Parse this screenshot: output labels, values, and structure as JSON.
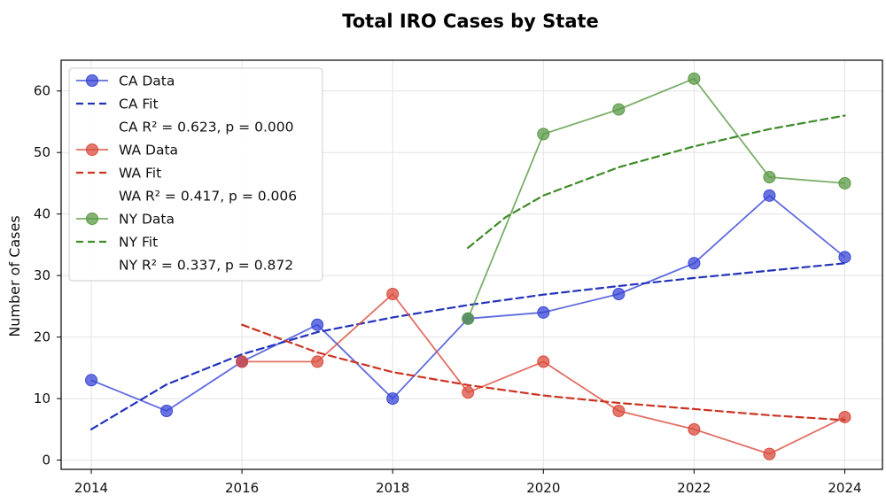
{
  "chart_data": {
    "type": "line",
    "title": "Total IRO Cases by State",
    "xlabel": "",
    "ylabel": "Number of Cases",
    "xlim": [
      2013.6,
      2024.5
    ],
    "ylim": [
      -1.5,
      65
    ],
    "x_ticks": [
      2014,
      2016,
      2018,
      2020,
      2022,
      2024
    ],
    "y_ticks": [
      0,
      10,
      20,
      30,
      40,
      50,
      60
    ],
    "grid": true,
    "legend_position": "top-left",
    "series": [
      {
        "name": "CA Data",
        "kind": "data",
        "color": "#3846d6",
        "x": [
          2014,
          2015,
          2016,
          2017,
          2018,
          2019,
          2020,
          2021,
          2022,
          2023,
          2024
        ],
        "values": [
          13,
          8,
          16,
          22,
          10,
          23,
          24,
          27,
          32,
          43,
          33
        ]
      },
      {
        "name": "CA Fit",
        "kind": "fit",
        "color": "#2233bb",
        "x": [
          2014,
          2015,
          2016,
          2017,
          2018,
          2019,
          2020,
          2021,
          2022,
          2023,
          2024
        ],
        "values": [
          5,
          12.3,
          17.2,
          20.8,
          23.2,
          25.2,
          26.9,
          28.3,
          29.6,
          30.8,
          32
        ]
      },
      {
        "name": "WA Data",
        "kind": "data",
        "color": "#d94c3d",
        "x": [
          2016,
          2017,
          2018,
          2019,
          2020,
          2021,
          2022,
          2023,
          2024
        ],
        "values": [
          16,
          16,
          27,
          11,
          16,
          8,
          5,
          1,
          7
        ]
      },
      {
        "name": "WA Fit",
        "kind": "fit",
        "color": "#cc3322",
        "x": [
          2016,
          2017,
          2018,
          2019,
          2020,
          2021,
          2022,
          2023,
          2024
        ],
        "values": [
          22,
          17.5,
          14.3,
          12.2,
          10.5,
          9.3,
          8.3,
          7.3,
          6.5
        ]
      },
      {
        "name": "NY Data",
        "kind": "data",
        "color": "#5a9a45",
        "x": [
          2019,
          2020,
          2021,
          2022,
          2023,
          2024
        ],
        "values": [
          23,
          53,
          57,
          62,
          46,
          45
        ]
      },
      {
        "name": "NY Fit",
        "kind": "fit",
        "color": "#3f8a2a",
        "x": [
          2019,
          2019.5,
          2020,
          2021,
          2022,
          2023,
          2024
        ],
        "values": [
          34.5,
          39.5,
          43,
          47.6,
          51,
          53.8,
          56
        ]
      }
    ],
    "legend": [
      {
        "label": "CA Data",
        "marker": "data",
        "color": "#3846d6"
      },
      {
        "label": "CA Fit",
        "marker": "fit",
        "color": "#2233bb"
      },
      {
        "label": "CA R² = 0.623, p = 0.000",
        "marker": "none"
      },
      {
        "label": "WA Data",
        "marker": "data",
        "color": "#d94c3d"
      },
      {
        "label": "WA Fit",
        "marker": "fit",
        "color": "#cc3322"
      },
      {
        "label": "WA R² = 0.417, p = 0.006",
        "marker": "none"
      },
      {
        "label": "NY Data",
        "marker": "data",
        "color": "#5a9a45"
      },
      {
        "label": "NY Fit",
        "marker": "fit",
        "color": "#3f8a2a"
      },
      {
        "label": "NY R² = 0.337, p = 0.872",
        "marker": "none"
      }
    ]
  }
}
